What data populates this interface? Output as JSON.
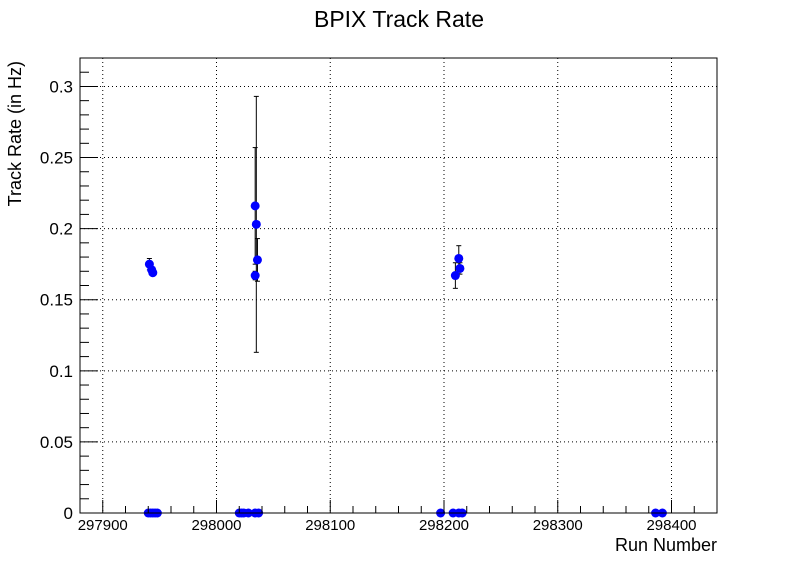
{
  "chart_data": {
    "type": "scatter",
    "title": "BPIX Track Rate",
    "xlabel": "Run Number",
    "ylabel": "Track Rate (in Hz)",
    "xlim": [
      297880,
      298440
    ],
    "ylim": [
      0,
      0.32
    ],
    "x_ticks": [
      297900,
      298000,
      298100,
      298200,
      298300,
      298400
    ],
    "x_tick_labels": [
      "297900",
      "298000",
      "298100",
      "298200",
      "298300",
      "298400"
    ],
    "y_ticks": [
      0,
      0.05,
      0.1,
      0.15,
      0.2,
      0.25,
      0.3
    ],
    "y_tick_labels": [
      "0",
      "0.05",
      "0.1",
      "0.15",
      "0.2",
      "0.25",
      "0.3"
    ],
    "grid": true,
    "marker_color": "#0000ff",
    "errorbar_color": "#000000",
    "points": [
      {
        "x": 297940,
        "y": 0.0,
        "err": 0.0
      },
      {
        "x": 297942,
        "y": 0.0,
        "err": 0.0
      },
      {
        "x": 297944,
        "y": 0.0,
        "err": 0.0
      },
      {
        "x": 297946,
        "y": 0.0,
        "err": 0.0
      },
      {
        "x": 297948,
        "y": 0.0,
        "err": 0.0
      },
      {
        "x": 297941,
        "y": 0.175,
        "err": 0.004
      },
      {
        "x": 297943,
        "y": 0.171,
        "err": 0.002
      },
      {
        "x": 297944,
        "y": 0.169,
        "err": 0.002
      },
      {
        "x": 298020,
        "y": 0.0,
        "err": 0.0
      },
      {
        "x": 298022,
        "y": 0.0,
        "err": 0.0
      },
      {
        "x": 298024,
        "y": 0.0,
        "err": 0.0
      },
      {
        "x": 298028,
        "y": 0.0,
        "err": 0.0
      },
      {
        "x": 298034,
        "y": 0.0,
        "err": 0.0
      },
      {
        "x": 298037,
        "y": 0.0,
        "err": 0.0
      },
      {
        "x": 298034,
        "y": 0.167,
        "err": 0.003
      },
      {
        "x": 298034,
        "y": 0.216,
        "err": 0.041
      },
      {
        "x": 298035,
        "y": 0.203,
        "err": 0.09
      },
      {
        "x": 298036,
        "y": 0.178,
        "err": 0.015
      },
      {
        "x": 298197,
        "y": 0.0,
        "err": 0.0
      },
      {
        "x": 298208,
        "y": 0.0,
        "err": 0.0
      },
      {
        "x": 298213,
        "y": 0.0,
        "err": 0.0
      },
      {
        "x": 298216,
        "y": 0.0,
        "err": 0.0
      },
      {
        "x": 298210,
        "y": 0.167,
        "err": 0.009
      },
      {
        "x": 298213,
        "y": 0.179,
        "err": 0.009
      },
      {
        "x": 298214,
        "y": 0.172,
        "err": 0.004
      },
      {
        "x": 298386,
        "y": 0.0,
        "err": 0.0
      },
      {
        "x": 298392,
        "y": 0.0,
        "err": 0.0
      }
    ]
  }
}
